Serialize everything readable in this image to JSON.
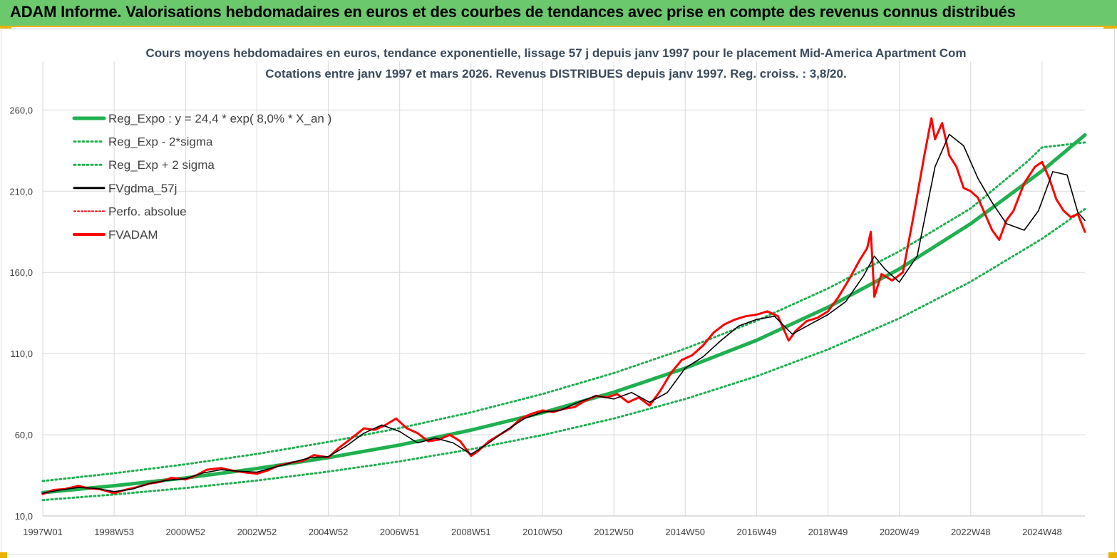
{
  "banner": {
    "title": "ADAM Informe. Valorisations hebdomadaires en euros et des courbes de tendances avec prise en compte des revenus connus distribués"
  },
  "colors": {
    "banner_bg": "#6cc86c",
    "accent_orange": "#e9b200",
    "trend_green": "#1fb050",
    "price_red": "#ff0000",
    "smooth_black": "#000000",
    "grid": "#d9d9d9"
  },
  "chart_data": {
    "type": "line",
    "title_line1": "Cours moyens hebdomadaires en euros, tendance exponentielle, lissage 57 j depuis janv 1997  pour le placement Mid-America Apartment Com",
    "title_line2": "Cotations entre janv 1997 et mars 2026. Revenus DISTRIBUES depuis janv 1997. Reg. croiss. : 3,8/20.",
    "xlabel": "",
    "ylabel": "",
    "ylim": [
      10,
      290
    ],
    "xlim": [
      1997.0,
      2026.2
    ],
    "grid": true,
    "legend_position": "top-left",
    "y_ticks": [
      {
        "value": 10,
        "label": "10,0"
      },
      {
        "value": 60,
        "label": "60,0"
      },
      {
        "value": 110,
        "label": "110,0"
      },
      {
        "value": 160,
        "label": "160,0"
      },
      {
        "value": 210,
        "label": "210,0"
      },
      {
        "value": 260,
        "label": "260,0"
      }
    ],
    "x_ticks": [
      {
        "value": 1997.0,
        "label": "1997W01"
      },
      {
        "value": 1999.0,
        "label": "1998W53"
      },
      {
        "value": 2001.0,
        "label": "2000W52"
      },
      {
        "value": 2003.0,
        "label": "2002W52"
      },
      {
        "value": 2005.0,
        "label": "2004W52"
      },
      {
        "value": 2007.0,
        "label": "2006W51"
      },
      {
        "value": 2009.0,
        "label": "2008W51"
      },
      {
        "value": 2011.0,
        "label": "2010W50"
      },
      {
        "value": 2013.0,
        "label": "2012W50"
      },
      {
        "value": 2015.0,
        "label": "2014W50"
      },
      {
        "value": 2017.0,
        "label": "2016W49"
      },
      {
        "value": 2019.0,
        "label": "2018W49"
      },
      {
        "value": 2021.0,
        "label": "2020W49"
      },
      {
        "value": 2023.0,
        "label": "2022W48"
      },
      {
        "value": 2025.0,
        "label": "2024W48"
      }
    ],
    "legend": [
      {
        "key": "reg",
        "label": "Reg_Expo : y = 24,4 * exp( 8,0% *  X_an )"
      },
      {
        "key": "lower",
        "label": "Reg_Exp - 2*sigma"
      },
      {
        "key": "upper",
        "label": "Reg_Exp + 2 sigma"
      },
      {
        "key": "smooth",
        "label": "FVgdma_57j"
      },
      {
        "key": "perfo",
        "label": "Perfo. absolue"
      },
      {
        "key": "fvadam",
        "label": "FVADAM"
      }
    ],
    "series": [
      {
        "name": "Reg_Expo : y = 24,4 * exp( 8,0% *  X_an )",
        "style": "solid-thick",
        "color": "#1fb050",
        "x": [
          1997.0,
          1999.0,
          2001.0,
          2003.0,
          2005.0,
          2007.0,
          2009.0,
          2011.0,
          2013.0,
          2015.0,
          2017.0,
          2019.0,
          2021.0,
          2023.0,
          2025.0,
          2026.2
        ],
        "y": [
          24.4,
          28.6,
          33.4,
          39.2,
          45.9,
          53.7,
          62.9,
          73.6,
          86.2,
          101.0,
          118.2,
          138.5,
          162.1,
          190.0,
          222.5,
          244.6
        ]
      },
      {
        "name": "Reg_Exp - 2*sigma",
        "style": "dotted",
        "color": "#1fb050",
        "x": [
          1997.0,
          1999.0,
          2001.0,
          2003.0,
          2005.0,
          2007.0,
          2009.0,
          2011.0,
          2013.0,
          2015.0,
          2017.0,
          2019.0,
          2021.0,
          2023.0,
          2025.0,
          2026.2
        ],
        "y": [
          19.8,
          23.2,
          27.2,
          31.8,
          37.3,
          43.6,
          51.1,
          59.8,
          70.0,
          82.0,
          96.0,
          112.5,
          131.7,
          154.3,
          180.7,
          199.0
        ]
      },
      {
        "name": "Reg_Exp + 2 sigma",
        "style": "dotted",
        "color": "#1fb050",
        "x": [
          1997.0,
          1999.0,
          2001.0,
          2003.0,
          2005.0,
          2007.0,
          2009.0,
          2011.0,
          2013.0,
          2015.0,
          2017.0,
          2019.0,
          2021.0,
          2023.0,
          2024.6,
          2025.0,
          2026.2
        ],
        "y": [
          31.5,
          36.3,
          41.8,
          48.2,
          55.6,
          64.1,
          73.8,
          85.1,
          98.0,
          113.0,
          130.2,
          150.1,
          173.0,
          199.4,
          228.5,
          237.0,
          240.0
        ]
      },
      {
        "name": "FVgdma_57j",
        "style": "solid",
        "color": "#000000",
        "x": [
          1997.0,
          1997.5,
          1998.0,
          1998.5,
          1999.0,
          1999.5,
          2000.0,
          2000.5,
          2001.0,
          2001.5,
          2002.0,
          2002.5,
          2003.0,
          2003.5,
          2004.0,
          2004.5,
          2005.0,
          2005.5,
          2006.0,
          2006.5,
          2007.0,
          2007.5,
          2008.0,
          2008.5,
          2009.0,
          2009.5,
          2010.0,
          2010.5,
          2011.0,
          2011.5,
          2012.0,
          2012.5,
          2013.0,
          2013.5,
          2014.0,
          2014.5,
          2015.0,
          2015.5,
          2016.0,
          2016.5,
          2017.0,
          2017.5,
          2018.0,
          2018.5,
          2019.0,
          2019.5,
          2020.0,
          2020.3,
          2020.6,
          2021.0,
          2021.5,
          2022.0,
          2022.4,
          2022.8,
          2023.2,
          2023.6,
          2024.0,
          2024.5,
          2024.9,
          2025.3,
          2025.7,
          2026.0,
          2026.2
        ],
        "y": [
          24.0,
          26.0,
          27.5,
          27.0,
          25.0,
          26.5,
          30.0,
          32.0,
          33.0,
          36.5,
          38.5,
          37.5,
          37.0,
          40.0,
          43.0,
          46.0,
          46.5,
          53.0,
          61.0,
          66.0,
          62.0,
          55.0,
          58.0,
          55.0,
          48.0,
          55.0,
          63.0,
          70.0,
          74.0,
          75.0,
          80.0,
          84.0,
          82.0,
          86.0,
          80.0,
          86.0,
          101.0,
          108.0,
          118.0,
          127.0,
          131.0,
          133.0,
          122.0,
          128.0,
          134.0,
          142.0,
          158.0,
          170.0,
          162.0,
          154.0,
          170.0,
          225.0,
          245.0,
          238.0,
          218.0,
          203.0,
          190.0,
          186.0,
          198.0,
          222.0,
          220.0,
          197.0,
          192.0
        ]
      },
      {
        "name": "Perfo. absolue",
        "style": "dotted",
        "color": "#ff0000",
        "x": [],
        "y": []
      },
      {
        "name": "FVADAM",
        "style": "solid-thick",
        "color": "#ff0000",
        "x": [
          1997.0,
          1997.3,
          1997.6,
          1998.0,
          1998.3,
          1998.6,
          1999.0,
          1999.3,
          1999.6,
          2000.0,
          2000.3,
          2000.6,
          2001.0,
          2001.3,
          2001.6,
          2002.0,
          2002.3,
          2002.6,
          2003.0,
          2003.3,
          2003.6,
          2004.0,
          2004.3,
          2004.6,
          2005.0,
          2005.3,
          2005.6,
          2006.0,
          2006.3,
          2006.6,
          2006.9,
          2007.2,
          2007.5,
          2007.8,
          2008.1,
          2008.4,
          2008.7,
          2009.0,
          2009.2,
          2009.5,
          2009.8,
          2010.1,
          2010.4,
          2010.7,
          2011.0,
          2011.3,
          2011.6,
          2011.9,
          2012.2,
          2012.5,
          2012.8,
          2013.1,
          2013.4,
          2013.7,
          2014.0,
          2014.3,
          2014.6,
          2014.9,
          2015.2,
          2015.5,
          2015.8,
          2016.1,
          2016.4,
          2016.7,
          2017.0,
          2017.3,
          2017.6,
          2017.9,
          2018.1,
          2018.4,
          2018.7,
          2019.0,
          2019.3,
          2019.6,
          2019.9,
          2020.1,
          2020.2,
          2020.3,
          2020.5,
          2020.8,
          2021.1,
          2021.4,
          2021.7,
          2021.9,
          2022.0,
          2022.2,
          2022.4,
          2022.6,
          2022.8,
          2023.0,
          2023.2,
          2023.4,
          2023.6,
          2023.8,
          2024.0,
          2024.2,
          2024.5,
          2024.8,
          2025.0,
          2025.2,
          2025.4,
          2025.6,
          2025.8,
          2026.0,
          2026.2
        ],
        "y": [
          23.5,
          26.0,
          26.5,
          28.5,
          27.0,
          26.5,
          24.0,
          26.0,
          27.5,
          30.0,
          31.0,
          33.5,
          32.5,
          35.0,
          38.5,
          39.5,
          38.0,
          37.0,
          36.0,
          38.0,
          41.0,
          43.0,
          44.0,
          47.5,
          46.0,
          52.0,
          57.0,
          64.0,
          63.0,
          66.0,
          70.0,
          64.0,
          61.0,
          56.0,
          57.0,
          60.0,
          56.0,
          47.0,
          50.0,
          56.0,
          60.0,
          64.0,
          70.0,
          73.0,
          75.0,
          74.0,
          76.0,
          77.0,
          81.0,
          84.0,
          83.0,
          85.0,
          80.0,
          83.0,
          78.0,
          87.0,
          98.0,
          106.0,
          109.0,
          115.0,
          123.0,
          128.0,
          131.0,
          133.0,
          134.0,
          136.0,
          133.0,
          118.0,
          124.0,
          130.0,
          132.0,
          136.0,
          145.0,
          156.0,
          168.0,
          175.0,
          185.0,
          145.0,
          159.0,
          155.0,
          160.0,
          195.0,
          232.0,
          255.0,
          242.0,
          252.0,
          232.0,
          225.0,
          212.0,
          210.0,
          206.0,
          196.0,
          186.0,
          180.0,
          192.0,
          198.0,
          215.0,
          225.0,
          228.0,
          218.0,
          205.0,
          198.0,
          194.0,
          196.0,
          185.0
        ]
      }
    ]
  }
}
